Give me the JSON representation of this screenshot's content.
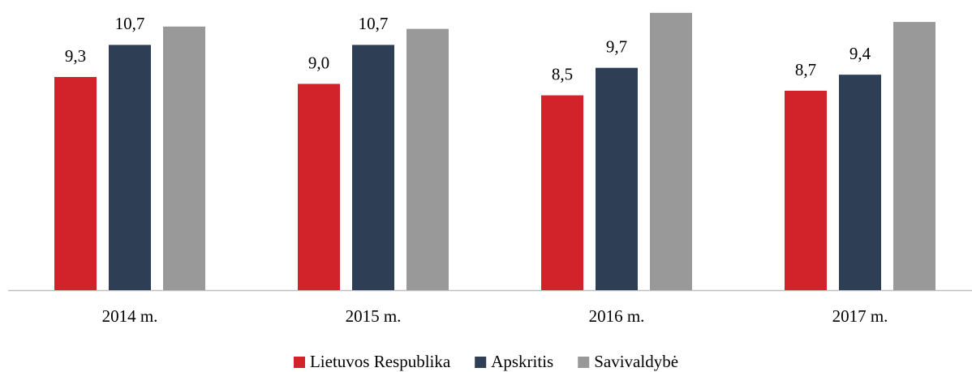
{
  "chart_data": {
    "type": "bar",
    "categories": [
      "2014 m.",
      "2015 m.",
      "2016 m.",
      "2017 m."
    ],
    "series": [
      {
        "name": "Lietuvos Respublika",
        "color": "#d2232a",
        "values": [
          9.3,
          9.0,
          8.5,
          8.7
        ],
        "value_labels": [
          "9,3",
          "9,0",
          "8,5",
          "8,7"
        ]
      },
      {
        "name": "Apskritis",
        "color": "#2e3e55",
        "values": [
          10.7,
          10.7,
          9.7,
          9.4
        ],
        "value_labels": [
          "10,7",
          "10,7",
          "9,7",
          "9,4"
        ]
      },
      {
        "name": "Savivaldybė",
        "color": "#999999",
        "values": [
          11.5,
          11.4,
          12.1,
          11.7
        ]
      }
    ],
    "ylim": [
      0,
      12.5
    ],
    "legend": "bottom"
  }
}
